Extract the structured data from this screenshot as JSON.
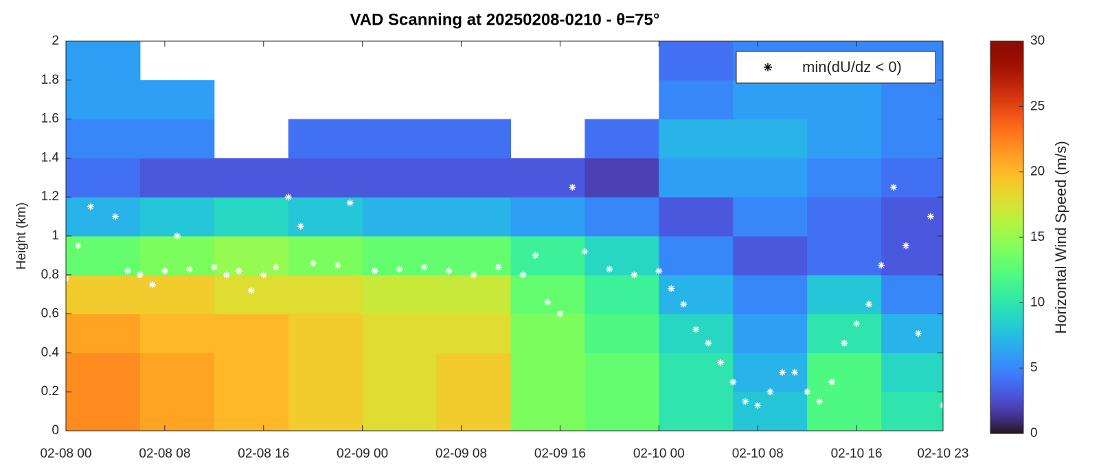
{
  "chart_data": {
    "type": "heatmap",
    "title": "VAD Scanning at 20250208-0210 - θ=75°",
    "y_label": "Height (km)",
    "colorbar_label": "Horizontal Wind Speed (m/s)",
    "colormap": "turbo",
    "x_edges": [
      0,
      6,
      12,
      18,
      24,
      30,
      36,
      42,
      48,
      54,
      60,
      66,
      71
    ],
    "y_edges": [
      0,
      0.2,
      0.4,
      0.6,
      0.8,
      1.0,
      1.2,
      1.4,
      1.6,
      1.8,
      2.0
    ],
    "z": [
      [
        22,
        21,
        20,
        19,
        18,
        19,
        14,
        13,
        10,
        8,
        12,
        10
      ],
      [
        22,
        21,
        20,
        19,
        18,
        19,
        14,
        13,
        10,
        7,
        12,
        9
      ],
      [
        21,
        20,
        20,
        19,
        18,
        18,
        14,
        12,
        9,
        6,
        10,
        7
      ],
      [
        19,
        19,
        18,
        18,
        17,
        17,
        13,
        11,
        7,
        5,
        8,
        5
      ],
      [
        13,
        14,
        15,
        14,
        13,
        13,
        11,
        9,
        5,
        3,
        4,
        3
      ],
      [
        7,
        8,
        9,
        8,
        7,
        7,
        6,
        5,
        3,
        5,
        4,
        3
      ],
      [
        4,
        3,
        3,
        3,
        3,
        3,
        3,
        2,
        6,
        6,
        5,
        4
      ],
      [
        5,
        5,
        null,
        4,
        4,
        4,
        null,
        4,
        7,
        7,
        6,
        5
      ],
      [
        6,
        6,
        null,
        null,
        null,
        null,
        null,
        null,
        5,
        6,
        6,
        5
      ],
      [
        6,
        null,
        null,
        null,
        null,
        null,
        null,
        null,
        4,
        5,
        5,
        5
      ]
    ],
    "zlim": [
      0,
      30
    ],
    "zticks": [
      0,
      5,
      10,
      15,
      20,
      25,
      30
    ],
    "xlim": [
      0,
      71
    ],
    "xticks": [
      {
        "value": 0,
        "label": "02-08 00"
      },
      {
        "value": 8,
        "label": "02-08 08"
      },
      {
        "value": 16,
        "label": "02-08 16"
      },
      {
        "value": 24,
        "label": "02-09 00"
      },
      {
        "value": 32,
        "label": "02-09 08"
      },
      {
        "value": 40,
        "label": "02-09 16"
      },
      {
        "value": 48,
        "label": "02-10 00"
      },
      {
        "value": 56,
        "label": "02-10 08"
      },
      {
        "value": 64,
        "label": "02-10 16"
      },
      {
        "value": 71,
        "label": "02-10 23"
      }
    ],
    "ylim": [
      0,
      2
    ],
    "yticks": [
      0,
      0.2,
      0.4,
      0.6,
      0.8,
      1,
      1.2,
      1.4,
      1.6,
      1.8,
      2
    ],
    "legend_position": "upper right",
    "series": [
      {
        "name": "min(dU/dz < 0)",
        "color": "#ffffff",
        "x": [
          0,
          1,
          2,
          4,
          5,
          6,
          7,
          8,
          9,
          10,
          12,
          13,
          14,
          15,
          16,
          17,
          18,
          19,
          20,
          22,
          23,
          25,
          27,
          29,
          31,
          33,
          35,
          37,
          38,
          39,
          40,
          41,
          42,
          44,
          46,
          48,
          49,
          50,
          51,
          52,
          53,
          54,
          55,
          56,
          57,
          58,
          59,
          60,
          61,
          62,
          63,
          64,
          65,
          66,
          67,
          68,
          69,
          70,
          71
        ],
        "values": [
          0.78,
          0.95,
          1.15,
          1.1,
          0.82,
          0.8,
          0.75,
          0.82,
          1.0,
          0.83,
          0.84,
          0.8,
          0.82,
          0.72,
          0.8,
          0.84,
          1.2,
          1.05,
          0.86,
          0.85,
          1.17,
          0.82,
          0.83,
          0.84,
          0.82,
          0.8,
          0.84,
          0.8,
          0.9,
          0.66,
          0.6,
          1.25,
          0.92,
          0.83,
          0.8,
          0.82,
          0.73,
          0.65,
          0.52,
          0.45,
          0.35,
          0.25,
          0.15,
          0.13,
          0.2,
          0.3,
          0.3,
          0.2,
          0.15,
          0.25,
          0.45,
          0.55,
          0.65,
          0.85,
          1.25,
          0.95,
          0.5,
          1.1,
          0.13
        ]
      }
    ]
  }
}
